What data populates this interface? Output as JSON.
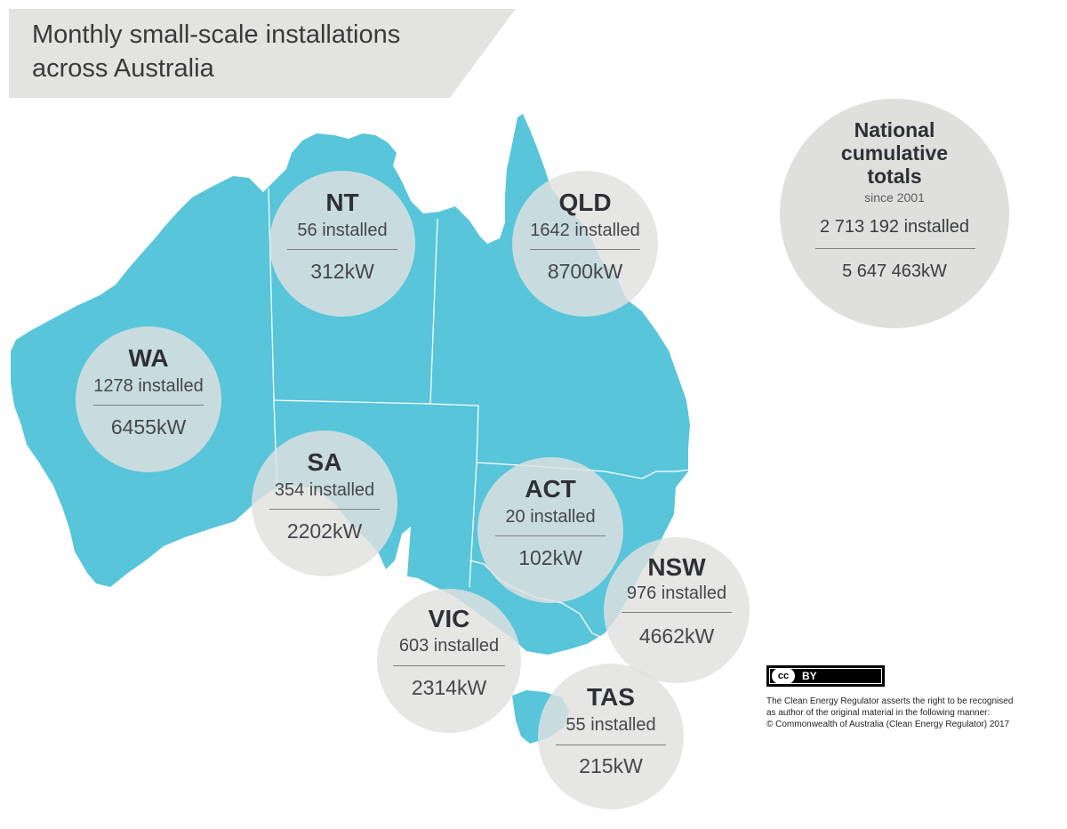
{
  "title": {
    "line1": "Monthly small-scale installations",
    "line2": "across Australia"
  },
  "colors": {
    "land": "#58c5da",
    "borders": "#ffffff",
    "bubble": "#e1e1df",
    "banner": "#e3e4e2"
  },
  "states": [
    {
      "code": "NT",
      "installed": "56 installed",
      "capacity": "312kW"
    },
    {
      "code": "QLD",
      "installed": "1642 installed",
      "capacity": "8700kW"
    },
    {
      "code": "WA",
      "installed": "1278 installed",
      "capacity": "6455kW"
    },
    {
      "code": "SA",
      "installed": "354 installed",
      "capacity": "2202kW"
    },
    {
      "code": "ACT",
      "installed": "20 installed",
      "capacity": "102kW"
    },
    {
      "code": "NSW",
      "installed": "976 installed",
      "capacity": "4662kW"
    },
    {
      "code": "VIC",
      "installed": "603 installed",
      "capacity": "2314kW"
    },
    {
      "code": "TAS",
      "installed": "55 installed",
      "capacity": "215kW"
    }
  ],
  "national": {
    "heading_1": "National",
    "heading_2": "cumulative",
    "heading_3": "totals",
    "since": "since 2001",
    "installed": "2 713 192 installed",
    "capacity": "5 647 463kW"
  },
  "license": {
    "badge_cc": "cc",
    "badge_by": "BY",
    "line1": "The Clean Energy Regulator asserts the right to be recognised",
    "line2": "as author of the original material in the following manner:",
    "line3": "© Commonwealth of Australia (Clean Energy Regulator) 2017"
  }
}
